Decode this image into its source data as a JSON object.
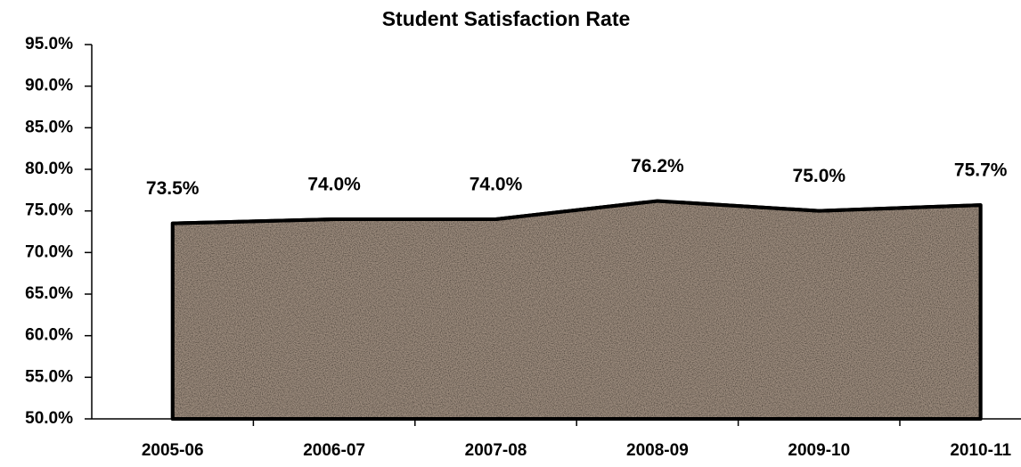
{
  "chart_data": {
    "type": "area",
    "title": "Student Satisfaction Rate",
    "categories": [
      "2005-06",
      "2006-07",
      "2007-08",
      "2008-09",
      "2009-10",
      "2010-11"
    ],
    "values": [
      73.5,
      74.0,
      74.0,
      76.2,
      75.0,
      75.7
    ],
    "value_labels": [
      "73.5%",
      "74.0%",
      "74.0%",
      "76.2%",
      "75.0%",
      "75.7%"
    ],
    "color": "#a08f80",
    "ylim": [
      50,
      95
    ],
    "yticks": [
      {
        "value": 50,
        "label": "50.0%"
      },
      {
        "value": 55,
        "label": "55.0%"
      },
      {
        "value": 60,
        "label": "60.0%"
      },
      {
        "value": 65,
        "label": "65.0%"
      },
      {
        "value": 70,
        "label": "70.0%"
      },
      {
        "value": 75,
        "label": "75.0%"
      },
      {
        "value": 80,
        "label": "80.0%"
      },
      {
        "value": 85,
        "label": "85.0%"
      },
      {
        "value": 90,
        "label": "90.0%"
      },
      {
        "value": 95,
        "label": "95.0%"
      }
    ],
    "grid": false
  }
}
